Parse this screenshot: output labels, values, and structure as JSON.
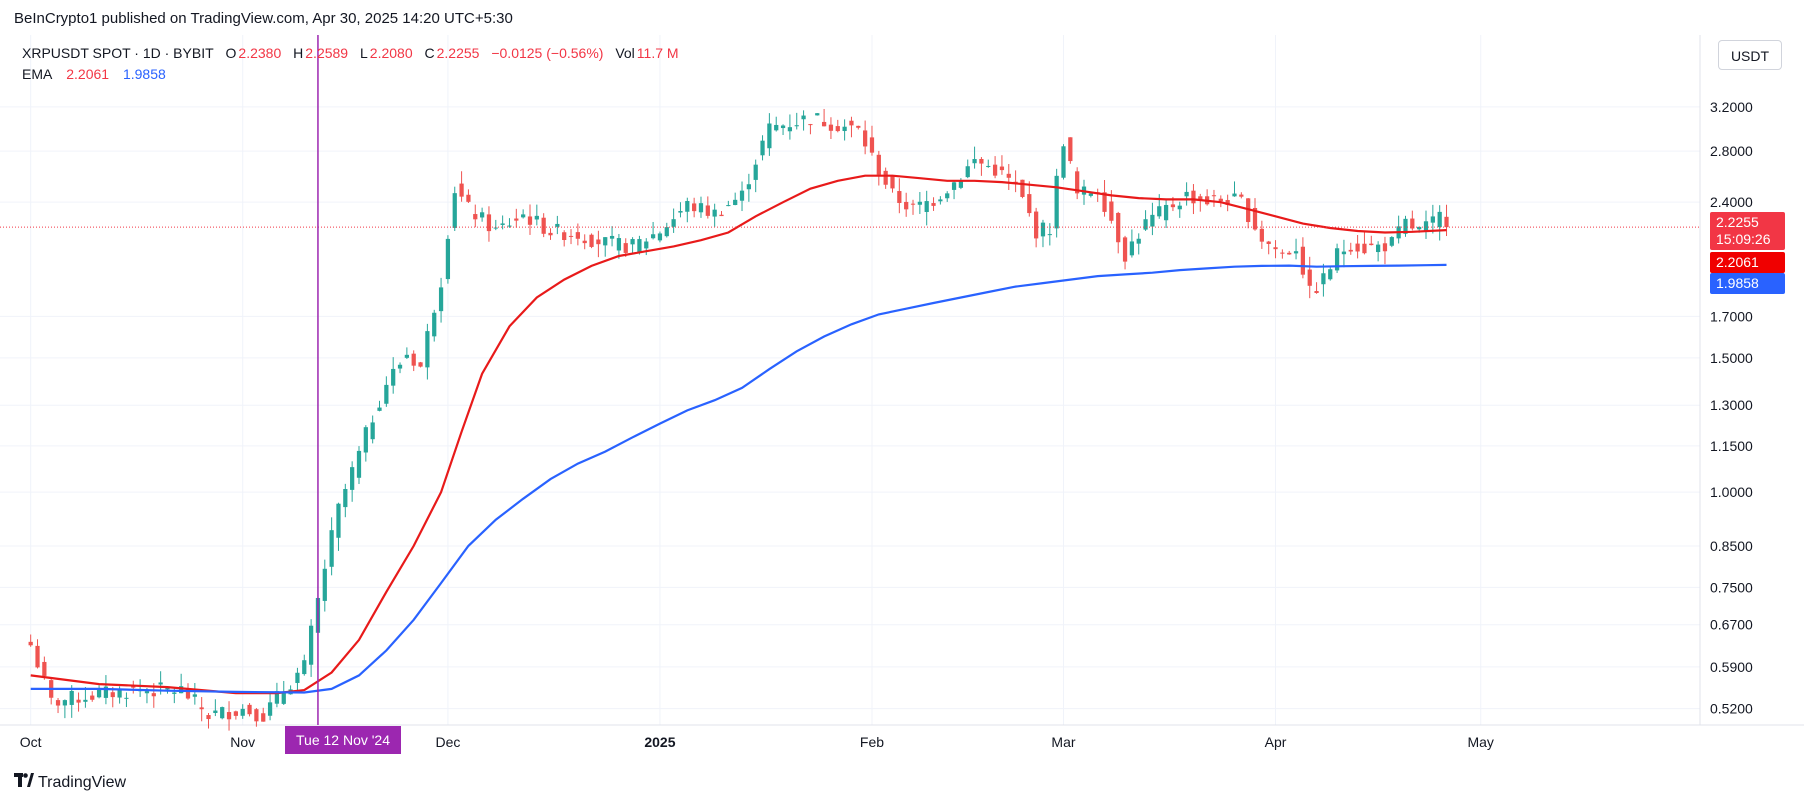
{
  "header": {
    "published_by": "BeInCrypto1 published on TradingView.com, Apr 30, 2025 14:20 UTC+5:30"
  },
  "legend": {
    "symbol": "XRPUSDT SPOT · 1D · BYBIT",
    "open_label": "O",
    "open": "2.2380",
    "high_label": "H",
    "high": "2.2589",
    "low_label": "L",
    "low": "2.2080",
    "close_label": "C",
    "close": "2.2255",
    "change": "−0.0125 (−0.56%)",
    "vol_label": "Vol",
    "vol": "11.7 M",
    "ema_label": "EMA",
    "ema1": "2.2061",
    "ema2": "1.9858"
  },
  "currency_button": "USDT",
  "brand": {
    "logo_text": "TradingView",
    "logo_icon": "tradingview-logo-icon"
  },
  "price_tags": {
    "last_price": "2.2255",
    "countdown": "15:09:26",
    "ema_fast": "2.2061",
    "ema_slow": "1.9858"
  },
  "crosshair_date": "Tue 12 Nov '24",
  "colors": {
    "up": "#26a69a",
    "down": "#ef5350",
    "ema_fast": "#e81a1a",
    "ema_slow": "#2962ff",
    "crosshair": "#9c27b0",
    "last_price_bg": "#f23645",
    "ema_fast_bg": "#f00000",
    "ema_slow_bg": "#2962ff"
  },
  "chart_data": {
    "type": "candlestick",
    "y_scale": "log",
    "ylim": [
      0.495,
      3.45
    ],
    "y_ticks": [
      "3.2000",
      "2.8000",
      "2.4000",
      "1.7000",
      "1.5000",
      "1.3000",
      "1.1500",
      "1.0000",
      "0.8500",
      "0.7500",
      "0.6700",
      "0.5900",
      "0.5200"
    ],
    "x_ticks": [
      "Oct",
      "Nov",
      "Dec",
      "2025",
      "Feb",
      "Mar",
      "Apr",
      "May"
    ],
    "x_tick_days": [
      0,
      31,
      61,
      92,
      123,
      151,
      182,
      212
    ],
    "bold_x_ticks": [
      "2025"
    ],
    "crosshair_day": 42,
    "last_price": 2.2255,
    "key_points": [
      [
        0,
        0.63
      ],
      [
        3,
        0.53
      ],
      [
        8,
        0.54
      ],
      [
        15,
        0.55
      ],
      [
        22,
        0.55
      ],
      [
        26,
        0.51
      ],
      [
        31,
        0.52
      ],
      [
        34,
        0.51
      ],
      [
        37,
        0.55
      ],
      [
        40,
        0.59
      ],
      [
        42,
        0.72
      ],
      [
        45,
        0.95
      ],
      [
        48,
        1.12
      ],
      [
        52,
        1.39
      ],
      [
        55,
        1.52
      ],
      [
        57,
        1.46
      ],
      [
        60,
        1.9
      ],
      [
        62,
        2.5
      ],
      [
        64,
        2.35
      ],
      [
        68,
        2.2
      ],
      [
        72,
        2.31
      ],
      [
        76,
        2.2
      ],
      [
        80,
        2.18
      ],
      [
        84,
        2.12
      ],
      [
        88,
        2.1
      ],
      [
        92,
        2.2
      ],
      [
        96,
        2.38
      ],
      [
        100,
        2.32
      ],
      [
        104,
        2.45
      ],
      [
        108,
        3.0
      ],
      [
        111,
        3.05
      ],
      [
        114,
        3.1
      ],
      [
        117,
        3.05
      ],
      [
        121,
        2.98
      ],
      [
        123,
        2.75
      ],
      [
        126,
        2.45
      ],
      [
        129,
        2.35
      ],
      [
        132,
        2.42
      ],
      [
        135,
        2.55
      ],
      [
        138,
        2.72
      ],
      [
        141,
        2.65
      ],
      [
        144,
        2.52
      ],
      [
        147,
        2.2
      ],
      [
        149,
        2.22
      ],
      [
        151,
        2.9
      ],
      [
        153,
        2.45
      ],
      [
        156,
        2.5
      ],
      [
        158,
        2.28
      ],
      [
        160,
        2.05
      ],
      [
        163,
        2.25
      ],
      [
        166,
        2.35
      ],
      [
        169,
        2.45
      ],
      [
        172,
        2.41
      ],
      [
        175,
        2.42
      ],
      [
        177,
        2.4
      ],
      [
        180,
        2.15
      ],
      [
        183,
        2.05
      ],
      [
        185,
        2.1
      ],
      [
        187,
        1.82
      ],
      [
        189,
        1.9
      ],
      [
        191,
        2.05
      ],
      [
        193,
        2.12
      ],
      [
        195,
        2.09
      ],
      [
        197,
        2.1
      ],
      [
        199,
        2.12
      ],
      [
        201,
        2.25
      ],
      [
        203,
        2.2
      ],
      [
        205,
        2.25
      ],
      [
        206,
        2.3
      ],
      [
        207,
        2.2255
      ]
    ],
    "series": [
      {
        "name": "EMA",
        "value": 2.2061,
        "points": [
          [
            0,
            0.575
          ],
          [
            10,
            0.56
          ],
          [
            20,
            0.555
          ],
          [
            30,
            0.545
          ],
          [
            36,
            0.545
          ],
          [
            40,
            0.55
          ],
          [
            44,
            0.58
          ],
          [
            48,
            0.64
          ],
          [
            52,
            0.74
          ],
          [
            56,
            0.85
          ],
          [
            60,
            1.0
          ],
          [
            63,
            1.2
          ],
          [
            66,
            1.43
          ],
          [
            70,
            1.65
          ],
          [
            74,
            1.8
          ],
          [
            78,
            1.9
          ],
          [
            82,
            1.98
          ],
          [
            86,
            2.04
          ],
          [
            90,
            2.07
          ],
          [
            94,
            2.1
          ],
          [
            98,
            2.14
          ],
          [
            102,
            2.19
          ],
          [
            106,
            2.3
          ],
          [
            110,
            2.4
          ],
          [
            114,
            2.5
          ],
          [
            118,
            2.56
          ],
          [
            122,
            2.6
          ],
          [
            126,
            2.6
          ],
          [
            130,
            2.58
          ],
          [
            134,
            2.56
          ],
          [
            138,
            2.56
          ],
          [
            142,
            2.55
          ],
          [
            146,
            2.53
          ],
          [
            150,
            2.51
          ],
          [
            154,
            2.48
          ],
          [
            158,
            2.45
          ],
          [
            162,
            2.43
          ],
          [
            166,
            2.42
          ],
          [
            170,
            2.42
          ],
          [
            174,
            2.4
          ],
          [
            178,
            2.35
          ],
          [
            182,
            2.3
          ],
          [
            186,
            2.25
          ],
          [
            190,
            2.22
          ],
          [
            194,
            2.2
          ],
          [
            198,
            2.19
          ],
          [
            202,
            2.195
          ],
          [
            207,
            2.2061
          ]
        ]
      },
      {
        "name": "EMA",
        "value": 1.9858,
        "points": [
          [
            0,
            0.552
          ],
          [
            10,
            0.552
          ],
          [
            20,
            0.549
          ],
          [
            30,
            0.547
          ],
          [
            40,
            0.546
          ],
          [
            44,
            0.552
          ],
          [
            48,
            0.575
          ],
          [
            52,
            0.62
          ],
          [
            56,
            0.68
          ],
          [
            60,
            0.76
          ],
          [
            64,
            0.85
          ],
          [
            68,
            0.92
          ],
          [
            72,
            0.98
          ],
          [
            76,
            1.04
          ],
          [
            80,
            1.09
          ],
          [
            84,
            1.13
          ],
          [
            88,
            1.18
          ],
          [
            92,
            1.23
          ],
          [
            96,
            1.28
          ],
          [
            100,
            1.32
          ],
          [
            104,
            1.37
          ],
          [
            108,
            1.45
          ],
          [
            112,
            1.53
          ],
          [
            116,
            1.6
          ],
          [
            120,
            1.66
          ],
          [
            124,
            1.71
          ],
          [
            128,
            1.74
          ],
          [
            132,
            1.77
          ],
          [
            136,
            1.8
          ],
          [
            140,
            1.83
          ],
          [
            144,
            1.86
          ],
          [
            148,
            1.88
          ],
          [
            152,
            1.9
          ],
          [
            156,
            1.92
          ],
          [
            160,
            1.93
          ],
          [
            164,
            1.94
          ],
          [
            168,
            1.955
          ],
          [
            172,
            1.965
          ],
          [
            176,
            1.975
          ],
          [
            180,
            1.98
          ],
          [
            184,
            1.982
          ],
          [
            188,
            1.975
          ],
          [
            192,
            1.978
          ],
          [
            196,
            1.98
          ],
          [
            200,
            1.982
          ],
          [
            204,
            1.984
          ],
          [
            207,
            1.9858
          ]
        ]
      }
    ]
  }
}
